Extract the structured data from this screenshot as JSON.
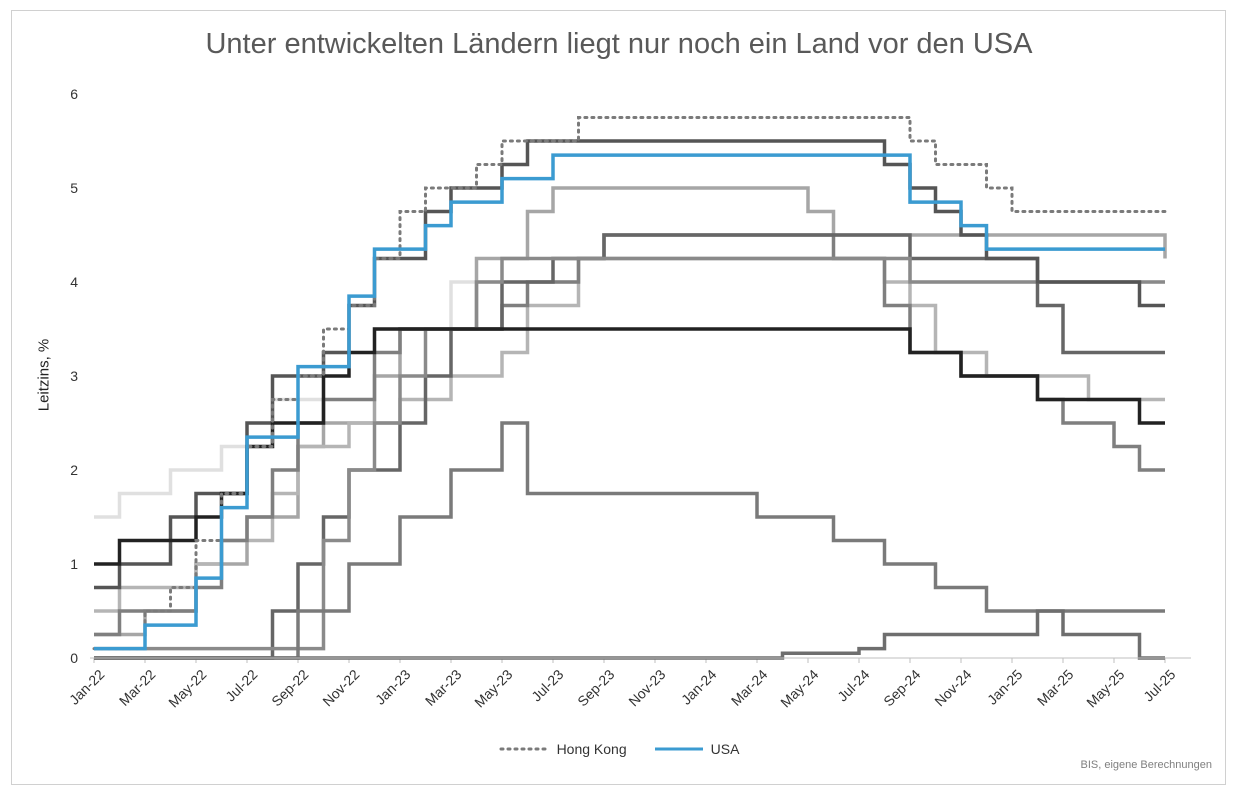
{
  "chart_data": {
    "type": "line",
    "step": true,
    "title": "Unter entwickelten Ländern liegt nur noch ein Land vor den USA",
    "ylabel": "Leitzins, %",
    "xlabel": "",
    "ylim": [
      0,
      6
    ],
    "yticks": [
      "0",
      "1",
      "2",
      "3",
      "4",
      "5",
      "6"
    ],
    "xlim": [
      "2022-01",
      "2025-07"
    ],
    "xticks": [
      "Jan-22",
      "Mar-22",
      "May-22",
      "Jul-22",
      "Sep-22",
      "Nov-22",
      "Jan-23",
      "Mar-23",
      "May-23",
      "Jul-23",
      "Sep-23",
      "Nov-23",
      "Jan-24",
      "Mar-24",
      "May-24",
      "Jul-24",
      "Sep-24",
      "Nov-24",
      "Jan-25",
      "Mar-25",
      "May-25",
      "Jul-25"
    ],
    "grid": false,
    "legend": "bottom",
    "source": "BIS, eigene Berechnungen",
    "series": [
      {
        "name": "",
        "color": "#e0e0e0",
        "style": "solid",
        "points": [
          [
            "2022-01",
            1.5
          ],
          [
            "2022-02",
            1.75
          ],
          [
            "2022-04",
            2.0
          ],
          [
            "2022-06",
            2.25
          ],
          [
            "2022-08",
            2.75
          ],
          [
            "2022-10",
            3.25
          ],
          [
            "2022-12",
            3.5
          ],
          [
            "2023-03",
            4.0
          ],
          [
            "2023-08",
            4.25
          ],
          [
            "2024-09",
            4.0
          ],
          [
            "2025-07",
            4.0
          ]
        ]
      },
      {
        "name": "",
        "color": "#a6a6a6",
        "style": "solid",
        "points": [
          [
            "2022-01",
            0.25
          ],
          [
            "2022-03",
            0.5
          ],
          [
            "2022-05",
            1.0
          ],
          [
            "2022-07",
            1.5
          ],
          [
            "2022-09",
            2.25
          ],
          [
            "2022-10",
            2.5
          ],
          [
            "2022-12",
            3.0
          ],
          [
            "2023-01",
            3.5
          ],
          [
            "2023-04",
            4.25
          ],
          [
            "2023-06",
            4.75
          ],
          [
            "2023-07",
            5.0
          ],
          [
            "2024-05",
            4.75
          ],
          [
            "2024-06",
            4.5
          ],
          [
            "2025-07",
            4.25
          ]
        ]
      },
      {
        "name": "",
        "color": "#b5b5b5",
        "style": "solid",
        "points": [
          [
            "2022-01",
            0.5
          ],
          [
            "2022-02",
            0.75
          ],
          [
            "2022-05",
            1.0
          ],
          [
            "2022-06",
            1.25
          ],
          [
            "2022-08",
            1.75
          ],
          [
            "2022-09",
            2.25
          ],
          [
            "2022-11",
            2.5
          ],
          [
            "2023-01",
            2.75
          ],
          [
            "2023-03",
            3.0
          ],
          [
            "2023-05",
            3.25
          ],
          [
            "2023-06",
            3.75
          ],
          [
            "2023-08",
            4.25
          ],
          [
            "2024-08",
            4.0
          ],
          [
            "2024-09",
            3.75
          ],
          [
            "2024-10",
            3.25
          ],
          [
            "2024-12",
            3.0
          ],
          [
            "2025-04",
            2.75
          ],
          [
            "2025-07",
            2.75
          ]
        ]
      },
      {
        "name": "",
        "color": "#7f7f7f",
        "style": "solid",
        "points": [
          [
            "2022-01",
            0.25
          ],
          [
            "2022-02",
            0.5
          ],
          [
            "2022-05",
            0.75
          ],
          [
            "2022-06",
            1.25
          ],
          [
            "2022-07",
            1.5
          ],
          [
            "2022-08",
            2.0
          ],
          [
            "2022-09",
            2.5
          ],
          [
            "2022-10",
            2.75
          ],
          [
            "2022-12",
            3.25
          ],
          [
            "2023-01",
            3.5
          ],
          [
            "2023-05",
            3.75
          ],
          [
            "2023-06",
            4.0
          ],
          [
            "2023-08",
            4.25
          ],
          [
            "2023-09",
            4.5
          ],
          [
            "2024-03",
            4.5
          ],
          [
            "2024-06",
            4.25
          ],
          [
            "2024-08",
            3.75
          ],
          [
            "2024-09",
            3.25
          ],
          [
            "2024-11",
            3.0
          ],
          [
            "2025-02",
            2.75
          ],
          [
            "2025-03",
            2.5
          ],
          [
            "2025-05",
            2.25
          ],
          [
            "2025-06",
            2.0
          ],
          [
            "2025-07",
            2.0
          ]
        ]
      },
      {
        "name": "",
        "color": "#666666",
        "style": "solid",
        "points": [
          [
            "2022-01",
            0.0
          ],
          [
            "2022-07",
            0.0
          ],
          [
            "2022-08",
            0.5
          ],
          [
            "2022-09",
            1.0
          ],
          [
            "2022-10",
            1.5
          ],
          [
            "2022-11",
            2.0
          ],
          [
            "2023-01",
            2.5
          ],
          [
            "2023-02",
            3.0
          ],
          [
            "2023-03",
            3.5
          ],
          [
            "2023-05",
            4.0
          ],
          [
            "2023-07",
            4.25
          ],
          [
            "2023-09",
            4.5
          ],
          [
            "2024-09",
            4.25
          ],
          [
            "2024-11",
            4.25
          ],
          [
            "2025-01",
            4.25
          ],
          [
            "2025-02",
            3.75
          ],
          [
            "2025-03",
            3.25
          ],
          [
            "2025-06",
            3.25
          ],
          [
            "2025-07",
            3.25
          ]
        ]
      },
      {
        "name": "",
        "color": "#8a8a8a",
        "style": "solid",
        "points": [
          [
            "2022-01",
            0.1
          ],
          [
            "2022-09",
            0.1
          ],
          [
            "2022-10",
            1.25
          ],
          [
            "2022-11",
            2.0
          ],
          [
            "2022-12",
            2.5
          ],
          [
            "2023-01",
            3.0
          ],
          [
            "2023-02",
            3.5
          ],
          [
            "2023-04",
            4.0
          ],
          [
            "2023-05",
            4.25
          ],
          [
            "2023-07",
            4.25
          ],
          [
            "2023-09",
            4.25
          ],
          [
            "2024-09",
            4.0
          ],
          [
            "2025-07",
            4.0
          ]
        ]
      },
      {
        "name": "",
        "color": "#555555",
        "style": "solid",
        "points": [
          [
            "2022-01",
            0.75
          ],
          [
            "2022-02",
            1.0
          ],
          [
            "2022-04",
            1.5
          ],
          [
            "2022-05",
            1.75
          ],
          [
            "2022-07",
            2.5
          ],
          [
            "2022-08",
            3.0
          ],
          [
            "2022-10",
            3.25
          ],
          [
            "2022-11",
            3.75
          ],
          [
            "2022-12",
            4.25
          ],
          [
            "2023-02",
            4.75
          ],
          [
            "2023-03",
            5.0
          ],
          [
            "2023-05",
            5.25
          ],
          [
            "2023-06",
            5.5
          ],
          [
            "2024-08",
            5.25
          ],
          [
            "2024-09",
            5.0
          ],
          [
            "2024-10",
            4.75
          ],
          [
            "2024-11",
            4.5
          ],
          [
            "2024-12",
            4.25
          ],
          [
            "2025-02",
            4.0
          ],
          [
            "2025-06",
            3.75
          ],
          [
            "2025-07",
            3.75
          ]
        ]
      },
      {
        "name": "",
        "color": "#222222",
        "style": "solid",
        "points": [
          [
            "2022-01",
            1.0
          ],
          [
            "2022-02",
            1.25
          ],
          [
            "2022-04",
            1.25
          ],
          [
            "2022-05",
            1.5
          ],
          [
            "2022-06",
            1.75
          ],
          [
            "2022-07",
            2.25
          ],
          [
            "2022-08",
            2.5
          ],
          [
            "2022-10",
            3.0
          ],
          [
            "2022-11",
            3.25
          ],
          [
            "2022-12",
            3.5
          ],
          [
            "2024-09",
            3.25
          ],
          [
            "2024-11",
            3.0
          ],
          [
            "2025-01",
            3.0
          ],
          [
            "2025-02",
            2.75
          ],
          [
            "2025-06",
            2.5
          ],
          [
            "2025-07",
            2.5
          ]
        ]
      },
      {
        "name": "",
        "color": "#7a7a7a",
        "style": "solid",
        "points": [
          [
            "2022-01",
            0.0
          ],
          [
            "2022-08",
            0.0
          ],
          [
            "2022-09",
            0.5
          ],
          [
            "2022-11",
            1.0
          ],
          [
            "2023-01",
            1.5
          ],
          [
            "2023-03",
            2.0
          ],
          [
            "2023-05",
            2.5
          ],
          [
            "2023-06",
            1.75
          ],
          [
            "2024-03",
            1.5
          ],
          [
            "2024-06",
            1.25
          ],
          [
            "2024-08",
            1.0
          ],
          [
            "2024-10",
            0.75
          ],
          [
            "2024-12",
            0.5
          ],
          [
            "2025-03",
            0.5
          ],
          [
            "2025-07",
            0.5
          ]
        ]
      },
      {
        "name": "",
        "color": "#6e6e6e",
        "style": "solid",
        "points": [
          [
            "2022-01",
            0.0
          ],
          [
            "2024-03",
            0.0
          ],
          [
            "2024-04",
            0.05
          ],
          [
            "2024-07",
            0.1
          ],
          [
            "2024-08",
            0.25
          ],
          [
            "2025-02",
            0.5
          ],
          [
            "2025-03",
            0.25
          ],
          [
            "2025-06",
            0.0
          ],
          [
            "2025-07",
            0.0
          ]
        ]
      },
      {
        "name": "Hong Kong",
        "color": "#7a7a7a",
        "style": "dotted",
        "points": [
          [
            "2022-01",
            0.1
          ],
          [
            "2022-03",
            0.5
          ],
          [
            "2022-04",
            0.75
          ],
          [
            "2022-05",
            1.25
          ],
          [
            "2022-06",
            1.75
          ],
          [
            "2022-07",
            2.25
          ],
          [
            "2022-08",
            2.75
          ],
          [
            "2022-09",
            3.0
          ],
          [
            "2022-10",
            3.5
          ],
          [
            "2022-11",
            3.75
          ],
          [
            "2022-12",
            4.25
          ],
          [
            "2023-01",
            4.75
          ],
          [
            "2023-02",
            5.0
          ],
          [
            "2023-04",
            5.25
          ],
          [
            "2023-05",
            5.5
          ],
          [
            "2023-08",
            5.75
          ],
          [
            "2024-09",
            5.5
          ],
          [
            "2024-10",
            5.25
          ],
          [
            "2024-12",
            5.0
          ],
          [
            "2025-01",
            4.75
          ],
          [
            "2025-07",
            4.75
          ]
        ]
      },
      {
        "name": "USA",
        "color": "#3b9bd1",
        "style": "solid",
        "points": [
          [
            "2022-01",
            0.1
          ],
          [
            "2022-03",
            0.35
          ],
          [
            "2022-05",
            0.85
          ],
          [
            "2022-06",
            1.6
          ],
          [
            "2022-07",
            2.35
          ],
          [
            "2022-09",
            3.1
          ],
          [
            "2022-11",
            3.85
          ],
          [
            "2022-12",
            4.35
          ],
          [
            "2023-02",
            4.6
          ],
          [
            "2023-03",
            4.85
          ],
          [
            "2023-05",
            5.1
          ],
          [
            "2023-07",
            5.35
          ],
          [
            "2024-09",
            4.85
          ],
          [
            "2024-11",
            4.6
          ],
          [
            "2024-12",
            4.35
          ],
          [
            "2025-07",
            4.35
          ]
        ]
      }
    ]
  }
}
